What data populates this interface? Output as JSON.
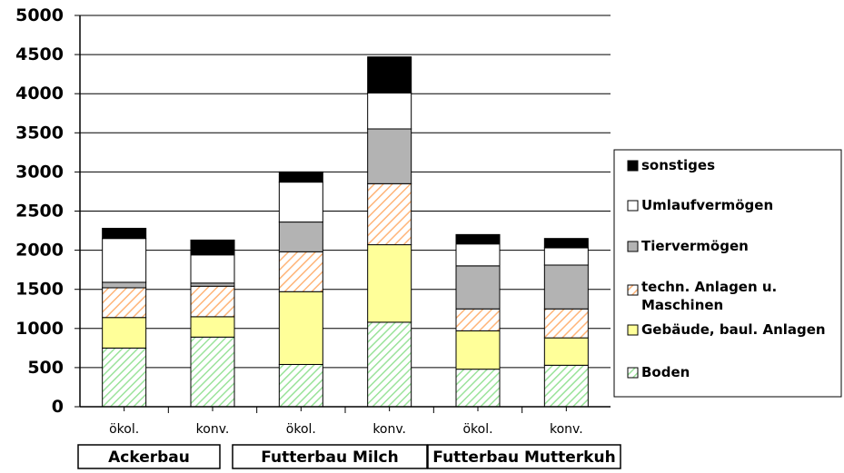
{
  "chart_data": {
    "type": "bar",
    "stacked": true,
    "categories": [
      "ökol.",
      "konv.",
      "ökol.",
      "konv.",
      "ökol.",
      "konv."
    ],
    "groups": [
      {
        "label": "Ackerbau",
        "categories": [
          0,
          1
        ]
      },
      {
        "label": "Futterbau  Milch",
        "categories": [
          2,
          3
        ]
      },
      {
        "label": "Futterbau Mutterkuh",
        "categories": [
          4,
          5
        ]
      }
    ],
    "series": [
      {
        "name": "Boden",
        "values": [
          750,
          890,
          540,
          1080,
          480,
          530
        ],
        "color": "#c6f2c6",
        "pattern": "diag-green"
      },
      {
        "name": "Gebäude, baul. Anlagen",
        "values": [
          390,
          260,
          930,
          990,
          490,
          350
        ],
        "color": "#ffff99",
        "pattern": "none"
      },
      {
        "name": "techn. Anlagen u. Maschinen",
        "values": [
          380,
          390,
          510,
          780,
          280,
          370
        ],
        "color": "#ffc896",
        "pattern": "diag-orange"
      },
      {
        "name": "Tiervermögen",
        "values": [
          70,
          40,
          380,
          700,
          550,
          560
        ],
        "color": "#b3b3b3",
        "pattern": "none"
      },
      {
        "name": "Umlaufvermögen",
        "values": [
          560,
          360,
          510,
          460,
          280,
          220
        ],
        "color": "#ffffff",
        "pattern": "none"
      },
      {
        "name": "sonstiges",
        "values": [
          130,
          190,
          130,
          460,
          120,
          120
        ],
        "color": "#000000",
        "pattern": "none"
      }
    ],
    "legend_order": [
      "sonstiges",
      "Umlaufvermögen",
      "Tiervermögen",
      "techn. Anlagen u. Maschinen",
      "Gebäude, baul. Anlagen",
      "Boden"
    ],
    "ylim": [
      0,
      5000
    ],
    "yticks": [
      0,
      500,
      1000,
      1500,
      2000,
      2500,
      3000,
      3500,
      4000,
      4500,
      5000
    ],
    "ytick_labels": [
      "0",
      "500",
      "1000",
      "1500",
      "2000",
      "2500",
      "3000",
      "3500",
      "4000",
      "4500",
      "5000"
    ],
    "grid": true,
    "legend_position": "right",
    "title": "",
    "xlabel": "",
    "ylabel": ""
  }
}
